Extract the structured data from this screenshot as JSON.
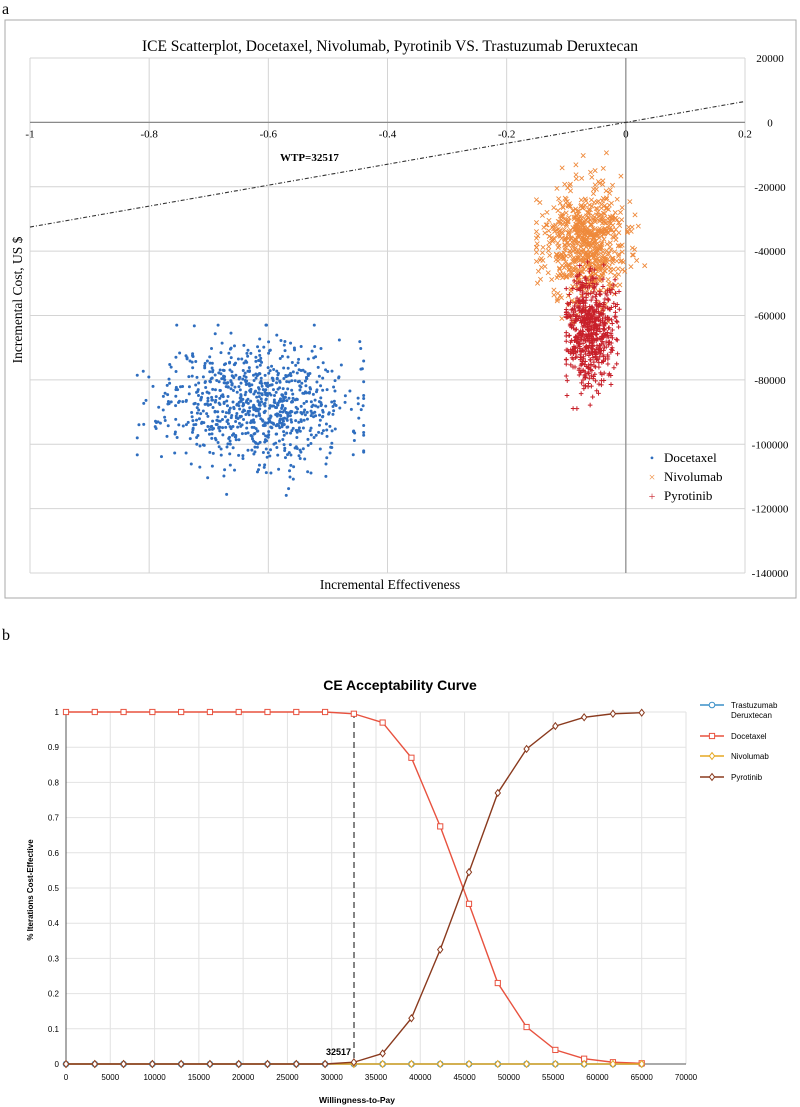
{
  "chart_data": [
    {
      "panel_label": "a",
      "type": "scatter",
      "title": "ICE Scatterplot, Docetaxel, Nivolumab, Pyrotinib VS. Trastuzumab Deruxtecan",
      "xlabel": "Incremental Effectiveness",
      "ylabel": "Incremental Cost, US $",
      "xlim": [
        -1,
        0.2
      ],
      "ylim": [
        -140000,
        20000
      ],
      "x_ticks": [
        -1,
        -0.8,
        -0.6,
        -0.4,
        -0.2,
        0,
        0.2
      ],
      "x_tick_labels": [
        "-1",
        "-0.8",
        "-0.6",
        "-0.4",
        "-0.2",
        "0",
        "0.2"
      ],
      "y_ticks": [
        20000,
        0,
        -20000,
        -40000,
        -60000,
        -80000,
        -100000,
        -120000,
        -140000
      ],
      "y_tick_labels": [
        "20000",
        "0",
        "-20000",
        "-40000",
        "-60000",
        "-80000",
        "-100000",
        "-120000",
        "-140000"
      ],
      "wtp_label": "WTP=32517",
      "wtp_slope": 32517,
      "legend_position": "bottom-right",
      "series": [
        {
          "name": "Docetaxel",
          "marker": "•",
          "color": "#2f6ebf",
          "center": [
            -0.62,
            -87000
          ],
          "spread": [
            0.075,
            9500
          ],
          "range_x": [
            -0.82,
            -0.44
          ],
          "range_y": [
            -116000,
            -63000
          ],
          "n": 900,
          "seed": 11
        },
        {
          "name": "Nivolumab",
          "marker": "×",
          "color": "#ef8a3c",
          "center": [
            -0.07,
            -38000
          ],
          "spread": [
            0.035,
            9000
          ],
          "range_x": [
            -0.15,
            0.09
          ],
          "range_y": [
            -62000,
            -8000
          ],
          "n": 700,
          "seed": 23
        },
        {
          "name": "Pyrotinib",
          "marker": "+",
          "color": "#c8202a",
          "center": [
            -0.06,
            -64000
          ],
          "spread": [
            0.02,
            8500
          ],
          "range_x": [
            -0.1,
            0.0
          ],
          "range_y": [
            -95000,
            -40000
          ],
          "n": 600,
          "seed": 37
        }
      ]
    },
    {
      "panel_label": "b",
      "type": "line",
      "title": "CE Acceptability Curve",
      "xlabel": "Willingness-to-Pay",
      "ylabel": "% Iterations Cost-Effective",
      "xlim": [
        0,
        70000
      ],
      "ylim": [
        0,
        1
      ],
      "x_ticks": [
        0,
        5000,
        10000,
        15000,
        20000,
        25000,
        30000,
        35000,
        40000,
        45000,
        50000,
        55000,
        60000,
        65000,
        70000
      ],
      "x_tick_labels": [
        "0",
        "5000",
        "10000",
        "15000",
        "20000",
        "25000",
        "30000",
        "35000",
        "40000",
        "45000",
        "50000",
        "55000",
        "60000",
        "65000",
        "70000"
      ],
      "y_ticks": [
        0,
        0.1,
        0.2,
        0.3,
        0.4,
        0.5,
        0.6,
        0.7,
        0.8,
        0.9,
        1
      ],
      "y_tick_labels": [
        "0",
        "0.1",
        "0.2",
        "0.3",
        "0.4",
        "0.5",
        "0.6",
        "0.7",
        "0.8",
        "0.9",
        "1"
      ],
      "threshold": 32517,
      "threshold_label": "32517",
      "x": [
        0,
        3250,
        6500,
        9750,
        13000,
        16250,
        19500,
        22750,
        26000,
        29250,
        32500,
        35750,
        39000,
        42250,
        45500,
        48750,
        52000,
        55250,
        58500,
        61750,
        65000
      ],
      "series": [
        {
          "name": "Trastuzumab Deruxtecan",
          "color": "#3a8fc7",
          "marker": "circle",
          "values": [
            0,
            0,
            0,
            0,
            0,
            0,
            0,
            0,
            0,
            0,
            0,
            0,
            0,
            0,
            0,
            0,
            0,
            0,
            0,
            0,
            0
          ]
        },
        {
          "name": "Docetaxel",
          "color": "#e8523f",
          "marker": "square",
          "values": [
            1,
            1,
            1,
            1,
            1,
            1,
            1,
            1,
            1,
            1,
            0.995,
            0.97,
            0.87,
            0.675,
            0.455,
            0.23,
            0.105,
            0.04,
            0.015,
            0.005,
            0.002
          ]
        },
        {
          "name": "Nivolumab",
          "color": "#e5a823",
          "marker": "diamond",
          "values": [
            0,
            0,
            0,
            0,
            0,
            0,
            0,
            0,
            0,
            0,
            0,
            0,
            0,
            0,
            0,
            0,
            0,
            0,
            0,
            0,
            0
          ]
        },
        {
          "name": "Pyrotinib",
          "color": "#8a3a1e",
          "marker": "diamond",
          "values": [
            0,
            0,
            0,
            0,
            0,
            0,
            0,
            0,
            0,
            0,
            0.005,
            0.03,
            0.13,
            0.325,
            0.545,
            0.77,
            0.895,
            0.96,
            0.985,
            0.995,
            0.998
          ]
        }
      ]
    }
  ]
}
